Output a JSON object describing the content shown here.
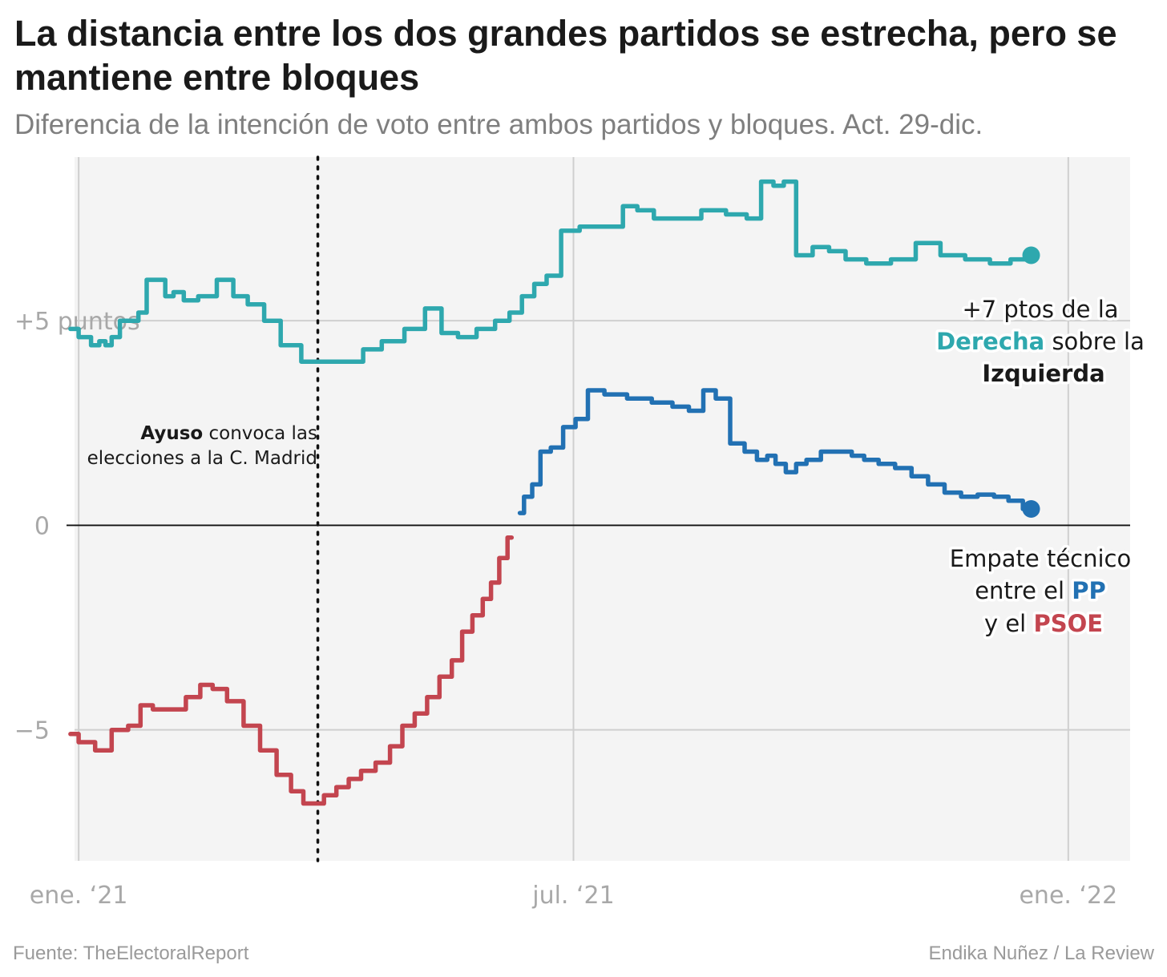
{
  "header": {
    "title": "La distancia entre los dos grandes partidos se estrecha, pero se mantiene entre bloques",
    "subtitle": "Diferencia de la intención de voto entre ambos partidos y bloques. Act. 29-dic."
  },
  "footer": {
    "source": "Fuente: TheElectoralReport",
    "credit": "Endika Nuñez / La Review"
  },
  "colors": {
    "bloques": "#2ea8ae",
    "pp": "#2271b3",
    "psoe": "#c3454f",
    "izquierda": "#e05a3a",
    "panel": "#f4f4f4",
    "grid": "#cfcfcf"
  },
  "annotations": {
    "event_bold": "Ayuso",
    "event_rest": " convoca las",
    "event_line2": "elecciones a la C. Madrid",
    "bloques_line1": "+7 ptos de la",
    "bloques_derecha": "Derecha",
    "bloques_sobre": " sobre la",
    "bloques_izquierda": "Izquierda",
    "empate_line1": "Empate técnico",
    "empate_entre": "entre el ",
    "empate_pp": "PP",
    "empate_yel": "y el ",
    "empate_psoe": "PSOE"
  },
  "chart_data": {
    "type": "line",
    "title": "La distancia entre los dos grandes partidos se estrecha, pero se mantiene entre bloques",
    "xlabel": "",
    "ylabel": "",
    "xlim": [
      -0.05,
      12.75
    ],
    "ylim": [
      -8.2,
      9.0
    ],
    "x_ticks": [
      {
        "value": 0,
        "label": "ene. ‘21"
      },
      {
        "value": 6,
        "label": "jul. ‘21"
      },
      {
        "value": 12,
        "label": "ene. ‘22"
      }
    ],
    "y_ticks": [
      {
        "value": 5,
        "label": "+5 puntos"
      },
      {
        "value": 0,
        "label": "0"
      },
      {
        "value": -5,
        "label": "−5"
      }
    ],
    "grid": true,
    "event_line": {
      "x": 2.9,
      "label": "Ayuso convoca las elecciones a la C. Madrid"
    },
    "series": [
      {
        "key": "bloques",
        "x": [
          -0.1,
          0.1,
          0.2,
          0.3,
          0.35,
          0.45,
          0.55,
          0.65,
          0.8,
          0.85,
          1.0,
          1.1,
          1.2,
          1.35,
          1.55,
          1.8,
          1.95,
          2.15,
          2.35,
          2.55,
          2.85,
          3.05,
          3.35,
          3.55,
          3.8,
          4.1,
          4.3,
          4.5,
          4.7,
          4.95,
          5.15,
          5.3,
          5.45,
          5.6,
          5.75,
          5.95,
          6.2,
          6.5,
          6.7,
          6.85,
          7.1,
          7.4,
          7.7,
          8.0,
          8.2,
          8.35,
          8.5,
          8.6,
          8.8,
          9.0,
          9.2,
          9.4,
          9.7,
          10.0,
          10.3,
          10.6,
          10.9,
          11.2,
          11.4,
          11.55
        ],
        "values": [
          4.8,
          4.6,
          4.4,
          4.5,
          4.4,
          4.6,
          5.0,
          5.0,
          5.2,
          6.0,
          6.0,
          5.6,
          5.7,
          5.5,
          5.6,
          6.0,
          5.6,
          5.4,
          5.0,
          4.4,
          4.0,
          4.0,
          4.0,
          4.3,
          4.5,
          4.8,
          5.3,
          4.7,
          4.6,
          4.8,
          5.0,
          5.2,
          5.6,
          5.9,
          6.1,
          7.2,
          7.3,
          7.3,
          7.8,
          7.7,
          7.5,
          7.5,
          7.7,
          7.6,
          7.5,
          8.4,
          8.3,
          8.4,
          6.6,
          6.8,
          6.7,
          6.5,
          6.4,
          6.5,
          6.9,
          6.6,
          6.5,
          6.4,
          6.5,
          6.6
        ]
      },
      {
        "key": "pp_psoe",
        "x": [
          -0.1,
          0.1,
          0.3,
          0.5,
          0.7,
          0.8,
          1.0,
          1.2,
          1.4,
          1.55,
          1.7,
          1.9,
          2.1,
          2.3,
          2.5,
          2.65,
          2.8,
          2.9,
          3.05,
          3.2,
          3.35,
          3.5,
          3.7,
          3.85,
          4.0,
          4.15,
          4.3,
          4.45,
          4.6,
          4.7,
          4.85,
          4.95,
          5.05,
          5.15,
          5.25,
          5.35,
          5.45,
          5.55,
          5.65,
          5.8,
          5.95,
          6.1,
          6.25,
          6.5,
          6.8,
          7.1,
          7.3,
          7.5,
          7.65,
          7.8,
          8.0,
          8.15,
          8.3,
          8.4,
          8.5,
          8.65,
          8.75,
          8.9,
          9.1,
          9.3,
          9.45,
          9.6,
          9.8,
          10.0,
          10.2,
          10.4,
          10.6,
          10.8,
          11.0,
          11.2,
          11.35,
          11.55
        ],
        "values": [
          -5.1,
          -5.3,
          -5.5,
          -5.0,
          -4.9,
          -4.4,
          -4.5,
          -4.5,
          -4.2,
          -3.9,
          -4.0,
          -4.3,
          -4.9,
          -5.5,
          -6.1,
          -6.5,
          -6.8,
          -6.8,
          -6.6,
          -6.4,
          -6.2,
          -6.0,
          -5.8,
          -5.4,
          -4.9,
          -4.6,
          -4.2,
          -3.7,
          -3.3,
          -2.6,
          -2.2,
          -1.8,
          -1.4,
          -0.8,
          -0.3,
          0.3,
          0.7,
          1.0,
          1.8,
          1.9,
          2.4,
          2.6,
          3.3,
          3.2,
          3.1,
          3.0,
          2.9,
          2.8,
          3.3,
          3.1,
          2.0,
          1.8,
          1.6,
          1.7,
          1.5,
          1.3,
          1.5,
          1.6,
          1.8,
          1.8,
          1.7,
          1.6,
          1.5,
          1.4,
          1.2,
          1.0,
          0.8,
          0.7,
          0.75,
          0.7,
          0.6,
          0.4
        ]
      }
    ]
  }
}
